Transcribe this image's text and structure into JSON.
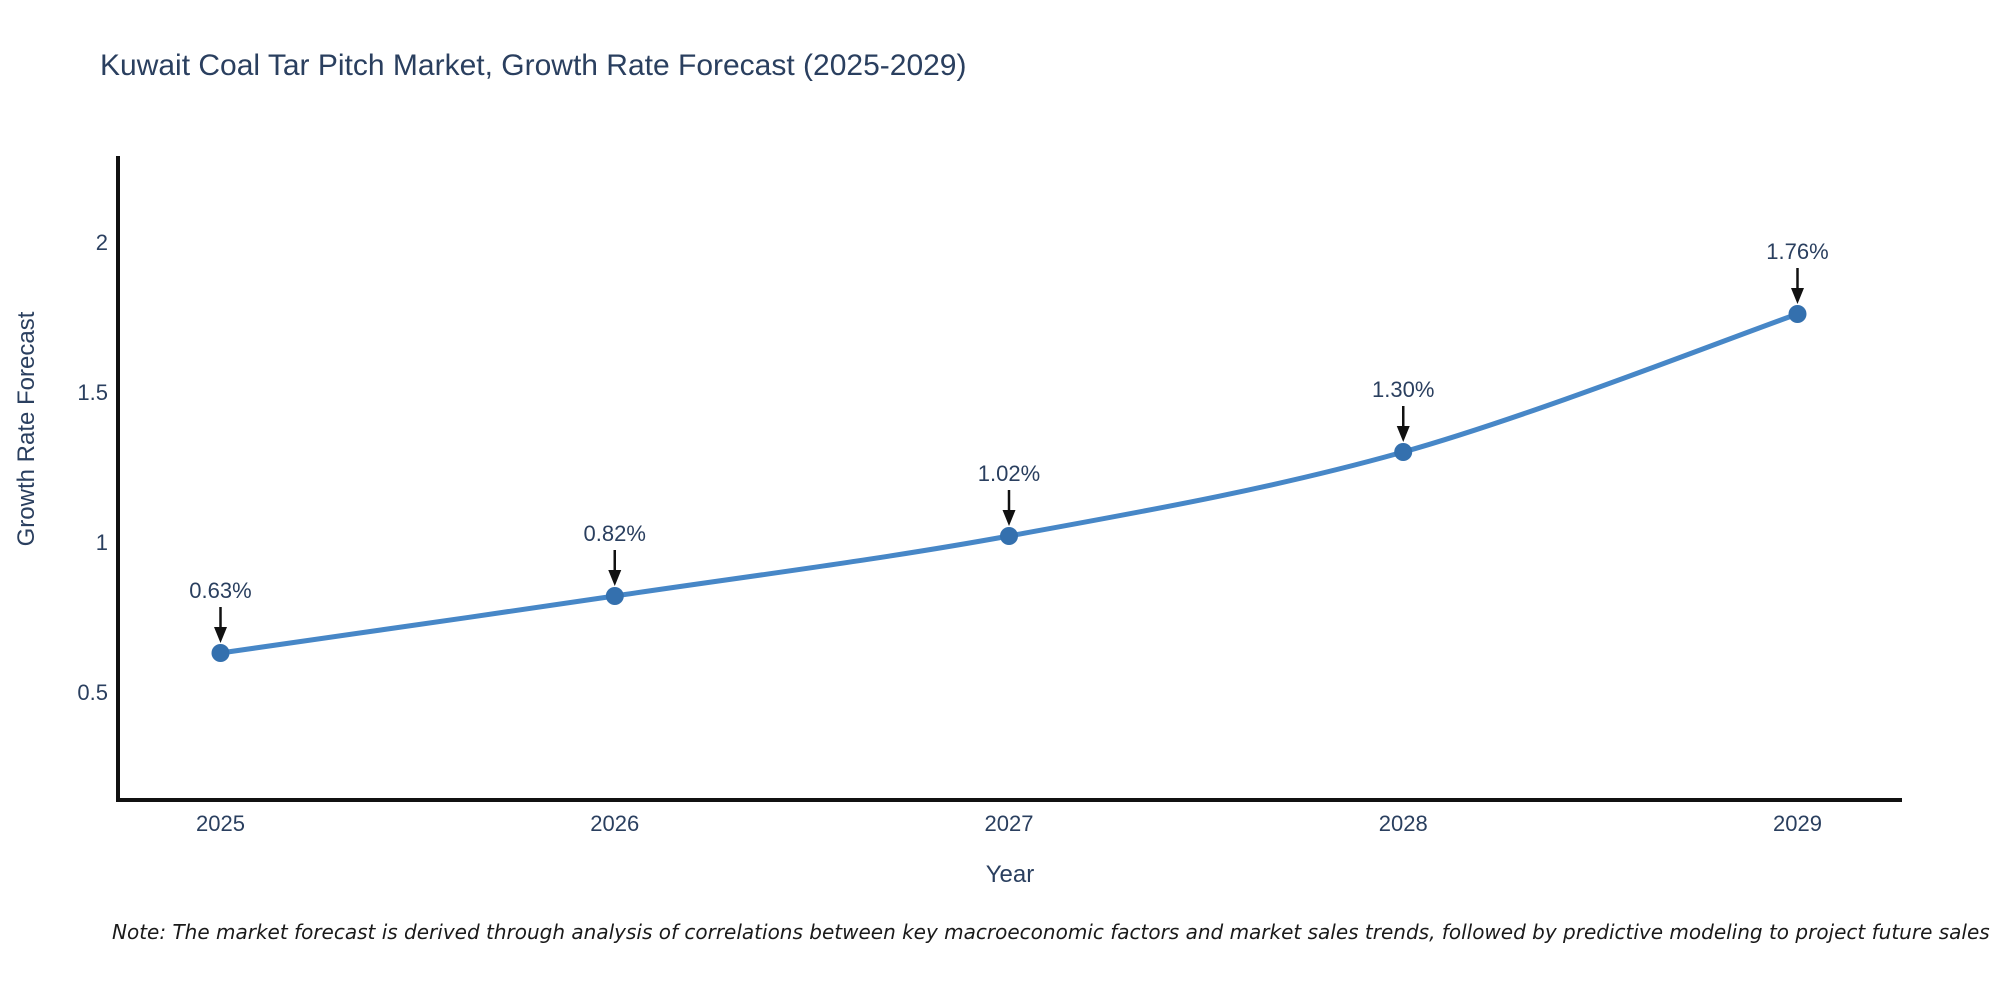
{
  "note": "Note: The market forecast is derived through analysis of correlations between key macroeconomic factors and market sales trends, followed by predictive modeling to project future sales",
  "chart_data": {
    "type": "line",
    "title": "Kuwait Coal Tar Pitch Market, Growth Rate Forecast (2025-2029)",
    "xlabel": "Year",
    "ylabel": "Growth Rate Forecast",
    "x": [
      2025,
      2026,
      2027,
      2028,
      2029
    ],
    "y": [
      0.63,
      0.82,
      1.02,
      1.3,
      1.76
    ],
    "point_labels": [
      "0.63%",
      "0.82%",
      "1.02%",
      "1.30%",
      "1.76%"
    ],
    "x_tick_labels": [
      "2025",
      "2026",
      "2027",
      "2028",
      "2029"
    ],
    "y_ticks": [
      0.5,
      1,
      1.5,
      2
    ],
    "y_tick_labels": [
      "0.5",
      "1",
      "1.5",
      "2"
    ],
    "x_range": [
      2024.74,
      2029.26
    ],
    "y_range": [
      0.14,
      2.28
    ],
    "grid": false,
    "legend": false,
    "line_shape": "spline",
    "annotation_style": "value-above-with-down-arrow",
    "colors": {
      "line": "#4787c7",
      "marker": "#3470ae",
      "text": "#2a3f5f",
      "axis": "#111111",
      "arrow": "#111111",
      "background": "#ffffff"
    }
  }
}
